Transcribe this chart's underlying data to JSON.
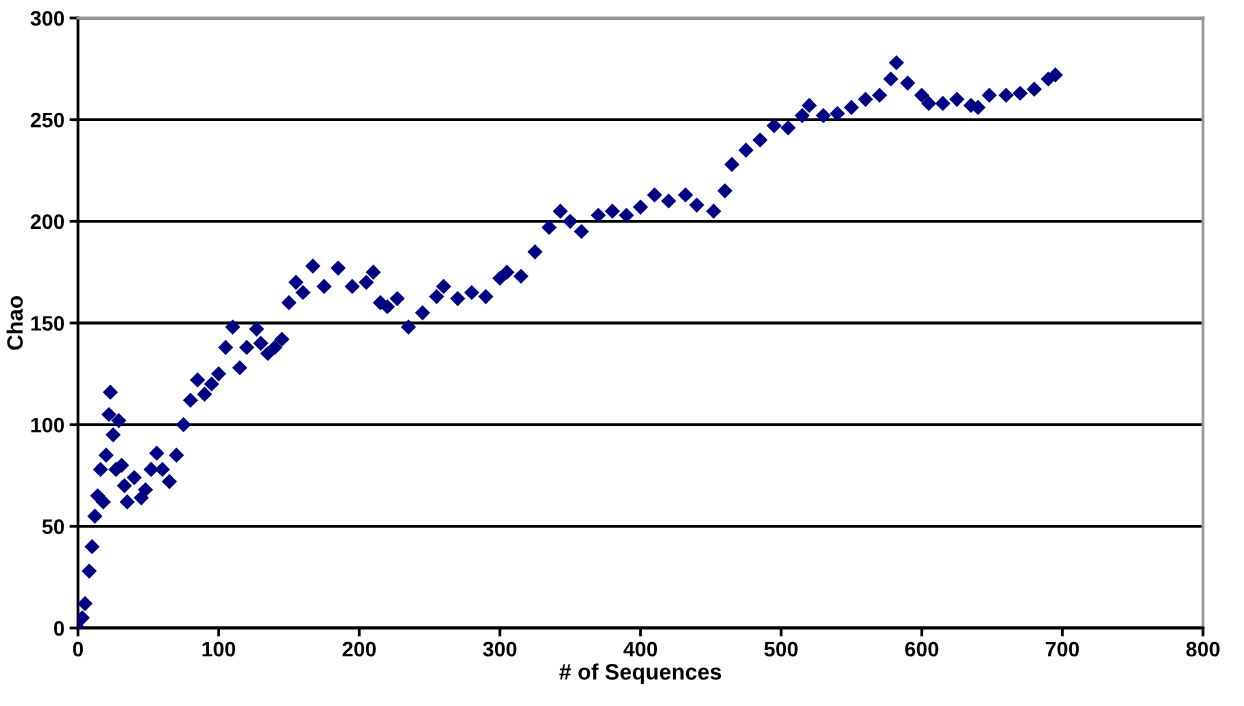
{
  "chart_data": {
    "type": "scatter",
    "xlabel": "# of Sequences",
    "ylabel": "Chao",
    "marker": "diamond",
    "grid": "y",
    "xlim": [
      0,
      800
    ],
    "ylim": [
      0,
      300
    ],
    "xticks": [
      0,
      100,
      200,
      300,
      400,
      500,
      600,
      700,
      800
    ],
    "yticks": [
      0,
      50,
      100,
      150,
      200,
      250,
      300
    ],
    "series": [
      {
        "color": "#000080",
        "x": [
          0,
          3,
          5,
          8,
          10,
          12,
          14,
          16,
          18,
          20,
          22,
          23,
          25,
          27,
          29,
          31,
          33,
          35,
          40,
          45,
          48,
          52,
          56,
          60,
          65,
          70,
          75,
          80,
          85,
          90,
          95,
          100,
          105,
          110,
          115,
          120,
          127,
          130,
          135,
          140,
          145,
          150,
          155,
          160,
          167,
          175,
          185,
          195,
          205,
          210,
          215,
          220,
          227,
          235,
          245,
          255,
          260,
          270,
          280,
          290,
          300,
          305,
          315,
          325,
          335,
          343,
          350,
          358,
          370,
          380,
          390,
          400,
          410,
          420,
          432,
          440,
          452,
          460,
          465,
          475,
          485,
          495,
          505,
          515,
          520,
          530,
          540,
          550,
          560,
          570,
          578,
          582,
          590,
          600,
          605,
          615,
          625,
          635,
          640,
          648,
          660,
          670,
          680,
          690,
          695
        ],
        "values": [
          0,
          5,
          12,
          28,
          40,
          55,
          65,
          78,
          62,
          85,
          105,
          116,
          95,
          78,
          102,
          80,
          70,
          62,
          74,
          64,
          68,
          78,
          86,
          78,
          72,
          85,
          100,
          112,
          122,
          115,
          120,
          125,
          138,
          148,
          128,
          138,
          147,
          140,
          135,
          138,
          142,
          160,
          170,
          165,
          178,
          168,
          177,
          168,
          170,
          175,
          160,
          158,
          162,
          148,
          155,
          163,
          168,
          162,
          165,
          163,
          172,
          175,
          173,
          185,
          197,
          205,
          200,
          195,
          203,
          205,
          203,
          207,
          213,
          210,
          213,
          208,
          205,
          215,
          228,
          235,
          240,
          247,
          246,
          252,
          257,
          252,
          253,
          256,
          260,
          262,
          270,
          278,
          268,
          262,
          258,
          258,
          260,
          257,
          256,
          262,
          262,
          263,
          265,
          270,
          272
        ]
      }
    ]
  }
}
